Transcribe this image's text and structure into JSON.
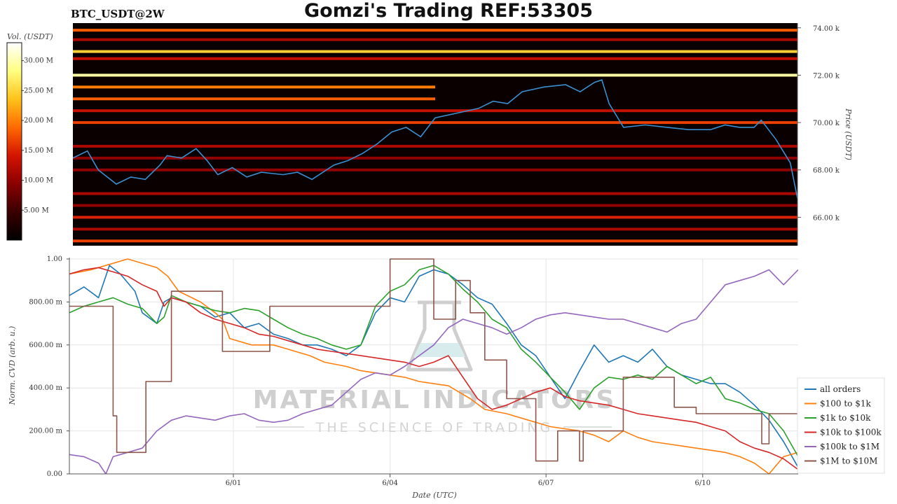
{
  "header": {
    "title": "Gomzi's Trading REF:53305",
    "pair": "BTC_USDT@2W"
  },
  "watermark": {
    "line1": "MATERIAL INDICATORS",
    "line2": "THE SCIENCE OF TRADING"
  },
  "chart_data": [
    {
      "type": "heatmap",
      "title": "BTC_USDT@2W",
      "ylabel": "Price (USDT)",
      "ylim": [
        64800,
        74200
      ],
      "yticks": [
        {
          "value": 66000,
          "label": "66.00 k"
        },
        {
          "value": 68000,
          "label": "68.00 k"
        },
        {
          "value": 70000,
          "label": "70.00 k"
        },
        {
          "value": 72000,
          "label": "72.00 k"
        },
        {
          "value": 74000,
          "label": "74.00 k"
        }
      ],
      "colorbar": {
        "label": "Vol. (USDT)",
        "range": [
          0,
          33000000
        ],
        "ticks": [
          {
            "value": 5000000,
            "label": "5.00 M"
          },
          {
            "value": 10000000,
            "label": "10.00 M"
          },
          {
            "value": 15000000,
            "label": "15.00 M"
          },
          {
            "value": 20000000,
            "label": "20.00 M"
          },
          {
            "value": 25000000,
            "label": "25.00 M"
          },
          {
            "value": 30000000,
            "label": "30.00 M"
          }
        ],
        "colors": [
          "#000000",
          "#3a0000",
          "#8b0000",
          "#d41400",
          "#ff6a00",
          "#ffc21a",
          "#ffff80",
          "#ffffff"
        ]
      },
      "bands": [
        {
          "price": 73900,
          "intensity": 0.55,
          "start": 0.0,
          "end": 1.0
        },
        {
          "price": 73500,
          "intensity": 0.35,
          "start": 0.0,
          "end": 1.0
        },
        {
          "price": 73000,
          "intensity": 0.75,
          "start": 0.0,
          "end": 1.0
        },
        {
          "price": 72700,
          "intensity": 0.4,
          "start": 0.0,
          "end": 1.0
        },
        {
          "price": 72000,
          "intensity": 0.9,
          "start": 0.0,
          "end": 1.0
        },
        {
          "price": 71500,
          "intensity": 0.6,
          "start": 0.0,
          "end": 0.5
        },
        {
          "price": 71000,
          "intensity": 0.55,
          "start": 0.0,
          "end": 0.5
        },
        {
          "price": 70500,
          "intensity": 0.4,
          "start": 0.0,
          "end": 1.0
        },
        {
          "price": 70000,
          "intensity": 0.5,
          "start": 0.0,
          "end": 1.0
        },
        {
          "price": 69000,
          "intensity": 0.35,
          "start": 0.0,
          "end": 1.0
        },
        {
          "price": 68500,
          "intensity": 0.3,
          "start": 0.0,
          "end": 1.0
        },
        {
          "price": 68000,
          "intensity": 0.3,
          "start": 0.0,
          "end": 1.0
        },
        {
          "price": 67000,
          "intensity": 0.35,
          "start": 0.0,
          "end": 1.0
        },
        {
          "price": 66500,
          "intensity": 0.3,
          "start": 0.0,
          "end": 1.0
        },
        {
          "price": 66000,
          "intensity": 0.45,
          "start": 0.0,
          "end": 1.0
        },
        {
          "price": 65500,
          "intensity": 0.35,
          "start": 0.0,
          "end": 1.0
        },
        {
          "price": 65000,
          "intensity": 0.5,
          "start": 0.0,
          "end": 1.0
        }
      ],
      "price_series": {
        "color": "#3b8fd0",
        "t": [
          0,
          0.02,
          0.035,
          0.06,
          0.08,
          0.1,
          0.12,
          0.13,
          0.15,
          0.17,
          0.185,
          0.2,
          0.22,
          0.24,
          0.26,
          0.29,
          0.31,
          0.33,
          0.36,
          0.38,
          0.4,
          0.42,
          0.44,
          0.46,
          0.48,
          0.5,
          0.53,
          0.56,
          0.58,
          0.6,
          0.62,
          0.65,
          0.68,
          0.7,
          0.71,
          0.72,
          0.73,
          0.74,
          0.76,
          0.79,
          0.82,
          0.85,
          0.88,
          0.9,
          0.92,
          0.94,
          0.95,
          0.97,
          0.99,
          1.0
        ],
        "price": [
          68500,
          68800,
          68000,
          67400,
          67700,
          67600,
          68200,
          68600,
          68500,
          68900,
          68400,
          67800,
          68100,
          67700,
          67900,
          67800,
          67900,
          67600,
          68200,
          68400,
          68700,
          69100,
          69600,
          69800,
          69400,
          70200,
          70400,
          70600,
          70900,
          70800,
          71300,
          71500,
          71600,
          71300,
          71500,
          71700,
          71800,
          70800,
          69800,
          69900,
          69800,
          69700,
          69700,
          69900,
          69800,
          69800,
          70100,
          69300,
          68300,
          66800
        ]
      }
    },
    {
      "type": "line",
      "xlabel": "Date (UTC)",
      "ylabel": "Norm. CVD (arb. u.)",
      "ylim": [
        0,
        1
      ],
      "xticks": [
        {
          "pos": 0.225,
          "label": "6/01"
        },
        {
          "pos": 0.44,
          "label": "6/04"
        },
        {
          "pos": 0.654,
          "label": "6/07"
        },
        {
          "pos": 0.869,
          "label": "6/10"
        }
      ],
      "yticks": [
        {
          "value": 0,
          "label": "0.00"
        },
        {
          "value": 0.2,
          "label": "200.00 m"
        },
        {
          "value": 0.4,
          "label": "400.00 m"
        },
        {
          "value": 0.6,
          "label": "600.00 m"
        },
        {
          "value": 0.8,
          "label": "800.00 m"
        },
        {
          "value": 1.0,
          "label": "1.00"
        }
      ],
      "legend_position": "bottom-right",
      "series": [
        {
          "name": "all orders",
          "color": "#1f77b4",
          "step": false,
          "x": [
            0,
            0.02,
            0.04,
            0.055,
            0.07,
            0.09,
            0.1,
            0.12,
            0.13,
            0.14,
            0.16,
            0.18,
            0.2,
            0.22,
            0.24,
            0.26,
            0.28,
            0.3,
            0.32,
            0.34,
            0.36,
            0.38,
            0.4,
            0.42,
            0.44,
            0.46,
            0.48,
            0.5,
            0.52,
            0.54,
            0.56,
            0.58,
            0.6,
            0.62,
            0.64,
            0.66,
            0.68,
            0.7,
            0.72,
            0.74,
            0.76,
            0.78,
            0.8,
            0.82,
            0.84,
            0.86,
            0.88,
            0.9,
            0.92,
            0.94,
            0.96,
            0.98,
            1.0
          ],
          "y": [
            0.83,
            0.87,
            0.82,
            0.97,
            0.93,
            0.85,
            0.75,
            0.7,
            0.8,
            0.82,
            0.8,
            0.78,
            0.73,
            0.75,
            0.68,
            0.7,
            0.65,
            0.63,
            0.6,
            0.6,
            0.58,
            0.55,
            0.6,
            0.75,
            0.82,
            0.8,
            0.92,
            0.95,
            0.93,
            0.88,
            0.82,
            0.79,
            0.7,
            0.6,
            0.55,
            0.45,
            0.35,
            0.48,
            0.6,
            0.52,
            0.55,
            0.52,
            0.58,
            0.5,
            0.46,
            0.44,
            0.42,
            0.42,
            0.38,
            0.32,
            0.25,
            0.15,
            0.03
          ]
        },
        {
          "name": "$100 to $1k",
          "color": "#ff7f0e",
          "step": false,
          "x": [
            0,
            0.03,
            0.05,
            0.08,
            0.1,
            0.12,
            0.135,
            0.15,
            0.18,
            0.2,
            0.21,
            0.22,
            0.25,
            0.28,
            0.3,
            0.33,
            0.35,
            0.38,
            0.4,
            0.42,
            0.44,
            0.46,
            0.48,
            0.5,
            0.52,
            0.55,
            0.57,
            0.6,
            0.63,
            0.66,
            0.7,
            0.72,
            0.74,
            0.76,
            0.78,
            0.8,
            0.82,
            0.84,
            0.86,
            0.88,
            0.9,
            0.92,
            0.94,
            0.96,
            0.98,
            1.0
          ],
          "y": [
            0.93,
            0.95,
            0.97,
            1.0,
            0.98,
            0.96,
            0.92,
            0.85,
            0.8,
            0.75,
            0.72,
            0.63,
            0.6,
            0.6,
            0.58,
            0.55,
            0.52,
            0.5,
            0.48,
            0.47,
            0.46,
            0.45,
            0.43,
            0.42,
            0.41,
            0.35,
            0.3,
            0.28,
            0.25,
            0.22,
            0.2,
            0.18,
            0.15,
            0.2,
            0.17,
            0.15,
            0.14,
            0.13,
            0.12,
            0.11,
            0.1,
            0.08,
            0.05,
            0.0,
            0.08,
            0.1
          ]
        },
        {
          "name": "$1k to $10k",
          "color": "#2ca02c",
          "step": false,
          "x": [
            0,
            0.02,
            0.04,
            0.06,
            0.08,
            0.1,
            0.12,
            0.13,
            0.14,
            0.16,
            0.18,
            0.2,
            0.22,
            0.24,
            0.26,
            0.28,
            0.3,
            0.32,
            0.34,
            0.36,
            0.38,
            0.4,
            0.42,
            0.44,
            0.46,
            0.48,
            0.5,
            0.52,
            0.54,
            0.56,
            0.58,
            0.6,
            0.62,
            0.64,
            0.66,
            0.68,
            0.7,
            0.72,
            0.74,
            0.76,
            0.78,
            0.8,
            0.82,
            0.84,
            0.86,
            0.88,
            0.9,
            0.92,
            0.94,
            0.96,
            0.98,
            1.0
          ],
          "y": [
            0.75,
            0.78,
            0.8,
            0.82,
            0.79,
            0.77,
            0.7,
            0.73,
            0.83,
            0.8,
            0.78,
            0.76,
            0.75,
            0.77,
            0.76,
            0.72,
            0.68,
            0.65,
            0.63,
            0.6,
            0.58,
            0.6,
            0.78,
            0.85,
            0.88,
            0.95,
            0.97,
            0.93,
            0.86,
            0.8,
            0.72,
            0.68,
            0.58,
            0.52,
            0.45,
            0.38,
            0.3,
            0.4,
            0.45,
            0.44,
            0.46,
            0.44,
            0.5,
            0.46,
            0.42,
            0.45,
            0.35,
            0.33,
            0.3,
            0.28,
            0.2,
            0.08
          ]
        },
        {
          "name": "$10k to $100k",
          "color": "#d62728",
          "step": false,
          "x": [
            0,
            0.02,
            0.04,
            0.06,
            0.08,
            0.1,
            0.12,
            0.13,
            0.14,
            0.16,
            0.18,
            0.2,
            0.22,
            0.24,
            0.26,
            0.28,
            0.3,
            0.32,
            0.34,
            0.36,
            0.38,
            0.4,
            0.42,
            0.44,
            0.46,
            0.48,
            0.5,
            0.52,
            0.54,
            0.56,
            0.58,
            0.6,
            0.62,
            0.64,
            0.66,
            0.68,
            0.7,
            0.72,
            0.74,
            0.76,
            0.78,
            0.8,
            0.82,
            0.84,
            0.86,
            0.88,
            0.9,
            0.92,
            0.94,
            0.96,
            0.98,
            1.0
          ],
          "y": [
            0.93,
            0.95,
            0.96,
            0.94,
            0.92,
            0.88,
            0.85,
            0.78,
            0.82,
            0.8,
            0.75,
            0.72,
            0.7,
            0.68,
            0.65,
            0.64,
            0.62,
            0.6,
            0.58,
            0.57,
            0.56,
            0.55,
            0.54,
            0.53,
            0.52,
            0.5,
            0.52,
            0.55,
            0.45,
            0.35,
            0.3,
            0.32,
            0.35,
            0.38,
            0.4,
            0.36,
            0.34,
            0.33,
            0.32,
            0.3,
            0.28,
            0.27,
            0.26,
            0.25,
            0.24,
            0.22,
            0.2,
            0.15,
            0.12,
            0.1,
            0.07,
            0.02
          ]
        },
        {
          "name": "$100k to $1M",
          "color": "#9467bd",
          "step": false,
          "x": [
            0,
            0.02,
            0.04,
            0.05,
            0.06,
            0.08,
            0.1,
            0.12,
            0.14,
            0.16,
            0.18,
            0.2,
            0.22,
            0.24,
            0.26,
            0.28,
            0.3,
            0.32,
            0.34,
            0.36,
            0.38,
            0.4,
            0.42,
            0.44,
            0.46,
            0.48,
            0.5,
            0.52,
            0.54,
            0.56,
            0.58,
            0.6,
            0.62,
            0.64,
            0.66,
            0.68,
            0.7,
            0.72,
            0.74,
            0.76,
            0.78,
            0.8,
            0.82,
            0.84,
            0.86,
            0.88,
            0.9,
            0.92,
            0.94,
            0.96,
            0.98,
            1.0
          ],
          "y": [
            0.09,
            0.08,
            0.05,
            0.0,
            0.08,
            0.1,
            0.12,
            0.2,
            0.25,
            0.27,
            0.26,
            0.25,
            0.27,
            0.28,
            0.25,
            0.24,
            0.25,
            0.28,
            0.3,
            0.32,
            0.38,
            0.44,
            0.47,
            0.46,
            0.5,
            0.55,
            0.6,
            0.68,
            0.72,
            0.7,
            0.68,
            0.65,
            0.68,
            0.72,
            0.74,
            0.75,
            0.74,
            0.73,
            0.72,
            0.72,
            0.7,
            0.68,
            0.66,
            0.7,
            0.72,
            0.8,
            0.88,
            0.9,
            0.92,
            0.95,
            0.88,
            0.95
          ]
        },
        {
          "name": "$1M to $10M",
          "color": "#8c564b",
          "step": true,
          "x": [
            0,
            0.05,
            0.06,
            0.065,
            0.1,
            0.105,
            0.135,
            0.14,
            0.2,
            0.21,
            0.23,
            0.27,
            0.275,
            0.3,
            0.31,
            0.41,
            0.44,
            0.46,
            0.5,
            0.53,
            0.54,
            0.55,
            0.56,
            0.57,
            0.58,
            0.6,
            0.63,
            0.64,
            0.67,
            0.7,
            0.705,
            0.75,
            0.76,
            0.8,
            0.81,
            0.83,
            0.85,
            0.86,
            0.865,
            0.9,
            0.92,
            0.95,
            0.96,
            0.97,
            0.98,
            1.0
          ],
          "y": [
            0.78,
            0.78,
            0.27,
            0.1,
            0.1,
            0.43,
            0.43,
            0.85,
            0.85,
            0.57,
            0.57,
            0.57,
            0.78,
            0.78,
            0.78,
            0.78,
            1.0,
            1.0,
            0.72,
            0.9,
            0.9,
            0.75,
            0.75,
            0.53,
            0.53,
            0.35,
            0.35,
            0.06,
            0.2,
            0.06,
            0.2,
            0.2,
            0.45,
            0.45,
            0.45,
            0.31,
            0.31,
            0.28,
            0.28,
            0.28,
            0.28,
            0.14,
            0.28,
            0.28,
            0.28,
            0.0
          ]
        }
      ]
    }
  ]
}
